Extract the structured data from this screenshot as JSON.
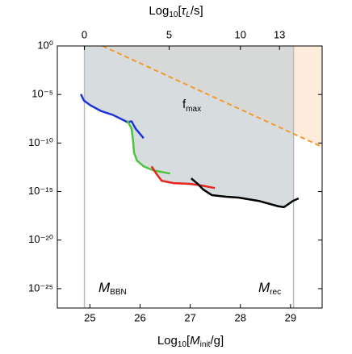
{
  "chart_data": {
    "type": "line",
    "log_y": true,
    "xlabel_parts": [
      "Log",
      "10",
      "[",
      "M",
      "init",
      "/g]"
    ],
    "x2label_parts": [
      "Log",
      "10",
      "[",
      "τ",
      "L",
      "/s]"
    ],
    "xlim": [
      24.35,
      29.63
    ],
    "xticks": [
      25,
      26,
      27,
      28,
      29
    ],
    "x2ticks": [
      0,
      5,
      10,
      13
    ],
    "x2tick_positions": [
      24.89,
      26.58,
      28.0,
      28.78
    ],
    "ylim": [
      1e-27,
      1
    ],
    "yticks": [
      {
        "value": 1,
        "label": "10⁰"
      },
      {
        "value": 1e-05,
        "label": "10⁻⁵"
      },
      {
        "value": 1e-10,
        "label": "10⁻¹⁰"
      },
      {
        "value": 1e-15,
        "label": "10⁻¹⁵"
      },
      {
        "value": 1e-20,
        "label": "10⁻²⁰"
      },
      {
        "value": 1e-25,
        "label": "10⁻²⁵"
      }
    ],
    "vlines": [
      {
        "x": 24.89,
        "label": [
          "M",
          "BBN"
        ]
      },
      {
        "x": 29.06,
        "label": [
          "M",
          "rec"
        ]
      }
    ],
    "shade_color": "#cdd3d7",
    "excluded_color": "#f5a35a",
    "annotation_parts": [
      "f",
      "max"
    ],
    "series": [
      {
        "color": "#1c35d8",
        "x": [
          24.82,
          24.88,
          25.01,
          25.22,
          25.46,
          25.62,
          25.75,
          25.83,
          25.91,
          26.07
        ],
        "values": [
          1.1e-05,
          2.4e-06,
          7.6e-07,
          2e-07,
          7.8e-08,
          3e-08,
          1.4e-08,
          1.7e-08,
          3.1e-09,
          3.2e-10
        ]
      },
      {
        "color": "#4cc43c",
        "x": [
          25.75,
          25.83,
          25.86,
          25.88,
          25.94,
          26.07,
          26.27,
          26.6
        ],
        "values": [
          2e-08,
          3.1e-09,
          1.8e-10,
          1e-11,
          1.5e-12,
          4e-13,
          1.5e-13,
          7.2e-14
        ]
      },
      {
        "color": "#e8231c",
        "x": [
          26.23,
          26.31,
          26.43,
          26.67,
          26.99,
          27.23,
          27.49
        ],
        "values": [
          4e-13,
          8.7e-14,
          1.3e-14,
          7.4e-15,
          6.2e-15,
          4.2e-15,
          2.3e-15
        ]
      },
      {
        "color": "#000000",
        "x": [
          27.02,
          27.15,
          27.26,
          27.43,
          27.72,
          27.96,
          28.36,
          28.76,
          28.87,
          28.96,
          29.05,
          29.16
        ],
        "values": [
          2.3e-14,
          6.2e-15,
          1.6e-15,
          4.3e-16,
          2.9e-16,
          2.4e-16,
          1.1e-16,
          3e-17,
          2.5e-17,
          5.2e-17,
          1.1e-16,
          2e-16
        ]
      },
      {
        "color": "#f39a2a",
        "dashed": true,
        "x": [
          25.25,
          29.63
        ],
        "values": [
          1,
          4e-11
        ]
      }
    ]
  }
}
